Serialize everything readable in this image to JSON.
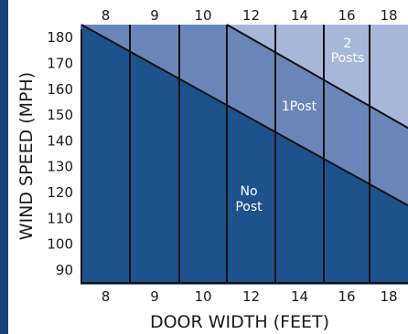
{
  "chart_data": {
    "type": "area",
    "xlabel": "DOOR WIDTH (FEET)",
    "ylabel": "WIND SPEED (MPH)",
    "categories": [
      "8",
      "9",
      "10",
      "12",
      "14",
      "16",
      "18"
    ],
    "y_ticks": [
      180,
      170,
      160,
      150,
      140,
      130,
      120,
      110,
      100,
      90
    ],
    "ylim": [
      85,
      185
    ],
    "boundaries": [
      {
        "label": "No Post",
        "upper_wind_speed": [
          185,
          175,
          165,
          155,
          145,
          135,
          125,
          115
        ]
      },
      {
        "label": "1Post",
        "upper_wind_speed": [
          null,
          null,
          null,
          185,
          175,
          165,
          155,
          145
        ]
      }
    ],
    "regions": [
      {
        "key": "none",
        "label": "No",
        "label2": "Post",
        "color": "#1d528d"
      },
      {
        "key": "one",
        "label": "1Post",
        "label2": "",
        "color": "#6a86b9"
      },
      {
        "key": "two",
        "label": "2",
        "label2": "Posts",
        "color": "#a6b7da"
      }
    ],
    "frame_color": "#5d7db0",
    "left_bar_color": "#1d3f7a"
  }
}
